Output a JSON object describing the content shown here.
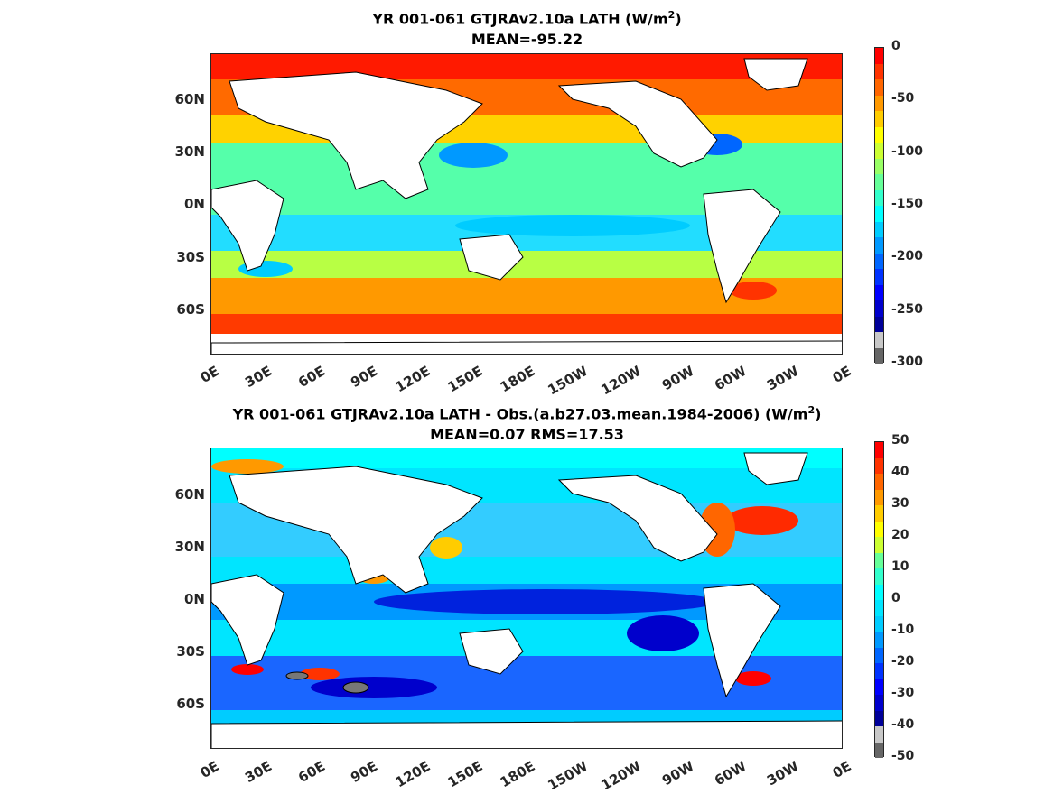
{
  "panels": [
    {
      "title_main": "YR 001-061 GTJRAv2.10a  LATH (W/m",
      "title_sup": "2",
      "title_end": ")",
      "subtitle": "MEAN=-95.22",
      "colorbar_ticks": [
        "0",
        "-50",
        "-100",
        "-150",
        "-200",
        "-250",
        "-300"
      ],
      "colorbar_colors": [
        "#ff0000",
        "#ff3300",
        "#ff6600",
        "#ff9900",
        "#ffcc00",
        "#ffff00",
        "#ccff33",
        "#99ff66",
        "#66ff99",
        "#33ffcc",
        "#00ffff",
        "#00ccff",
        "#0099ff",
        "#0066ff",
        "#0033ff",
        "#0000ff",
        "#0000cc",
        "#000099",
        "#c8c8c8",
        "#666666"
      ]
    },
    {
      "title_main": "YR 001-061 GTJRAv2.10a LATH - Obs.(a.b27.03.mean.1984-2006) (W/m",
      "title_sup": "2",
      "title_end": ")",
      "subtitle": "MEAN=0.07 RMS=17.53",
      "colorbar_ticks": [
        "50",
        "40",
        "30",
        "20",
        "10",
        "0",
        "-10",
        "-20",
        "-30",
        "-40",
        "-50"
      ],
      "colorbar_colors": [
        "#ff0000",
        "#ff3300",
        "#ff6600",
        "#ff9900",
        "#ffcc00",
        "#ffff00",
        "#ccff33",
        "#66ff99",
        "#33ffcc",
        "#00ffff",
        "#00e5ff",
        "#00ccff",
        "#0099ff",
        "#0066ff",
        "#0033ff",
        "#0000ff",
        "#0000cc",
        "#000099",
        "#c8c8c8",
        "#666666"
      ]
    }
  ],
  "lat_labels": [
    "60N",
    "30N",
    "0N",
    "30S",
    "60S"
  ],
  "lon_labels": [
    "0E",
    "30E",
    "60E",
    "90E",
    "120E",
    "150E",
    "180E",
    "150W",
    "120W",
    "90W",
    "60W",
    "30W",
    "0E"
  ]
}
